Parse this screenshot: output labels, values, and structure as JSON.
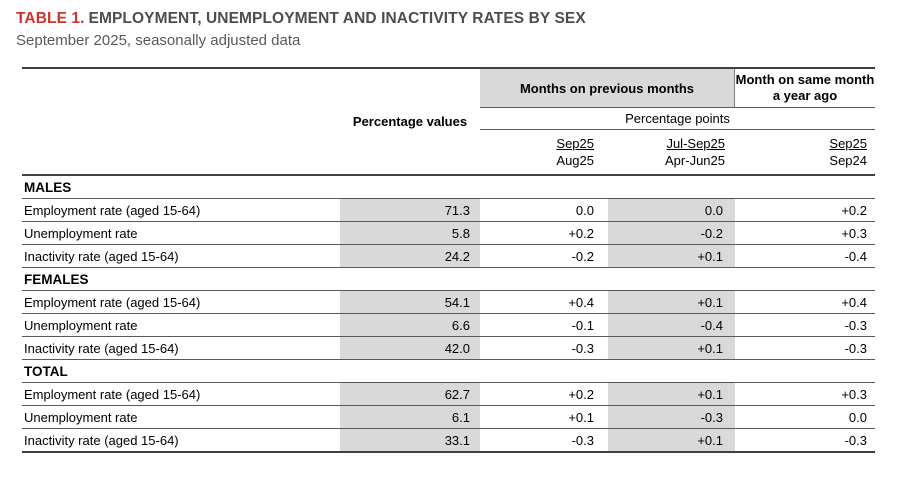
{
  "page": {
    "title_label": "TABLE 1.",
    "title_text": "EMPLOYMENT, UNEMPLOYMENT AND INACTIVITY RATES BY SEX",
    "subtitle": "September 2025, seasonally adjusted data"
  },
  "colors": {
    "accent_red": "#ce342b",
    "title_gray": "#4d4d4d",
    "subtitle_gray": "#595959",
    "shading_gray": "#d9d9d9",
    "border_dark": "#404040"
  },
  "table": {
    "col_headers": {
      "percentage_values": "Percentage values",
      "months_on_previous": "Months on previous months",
      "month_year_ago": "Month on same month a year ago",
      "percentage_points": "Percentage points",
      "periods": [
        {
          "top": "Sep25",
          "bottom": "Aug25"
        },
        {
          "top": "Jul-Sep25",
          "bottom": "Apr-Jun25"
        },
        {
          "top": "Sep25",
          "bottom": "Sep24"
        }
      ]
    },
    "sections": [
      {
        "name": "MALES",
        "rows": [
          {
            "label": "Employment rate (aged 15-64)",
            "values": [
              "71.3",
              "0.0",
              "0.0",
              "+0.2"
            ]
          },
          {
            "label": "Unemployment rate",
            "values": [
              "5.8",
              "+0.2",
              "-0.2",
              "+0.3"
            ]
          },
          {
            "label": "Inactivity rate (aged 15-64)",
            "values": [
              "24.2",
              "-0.2",
              "+0.1",
              "-0.4"
            ]
          }
        ]
      },
      {
        "name": "FEMALES",
        "rows": [
          {
            "label": "Employment rate (aged 15-64)",
            "values": [
              "54.1",
              "+0.4",
              "+0.1",
              "+0.4"
            ]
          },
          {
            "label": "Unemployment rate",
            "values": [
              "6.6",
              "-0.1",
              "-0.4",
              "-0.3"
            ]
          },
          {
            "label": "Inactivity rate (aged 15-64)",
            "values": [
              "42.0",
              "-0.3",
              "+0.1",
              "-0.3"
            ]
          }
        ]
      },
      {
        "name": "TOTAL",
        "rows": [
          {
            "label": "Employment rate (aged 15-64)",
            "values": [
              "62.7",
              "+0.2",
              "+0.1",
              "+0.3"
            ]
          },
          {
            "label": "Unemployment rate",
            "values": [
              "6.1",
              "+0.1",
              "-0.3",
              "0.0"
            ]
          },
          {
            "label": "Inactivity rate (aged 15-64)",
            "values": [
              "33.1",
              "-0.3",
              "+0.1",
              "-0.3"
            ]
          }
        ]
      }
    ]
  }
}
